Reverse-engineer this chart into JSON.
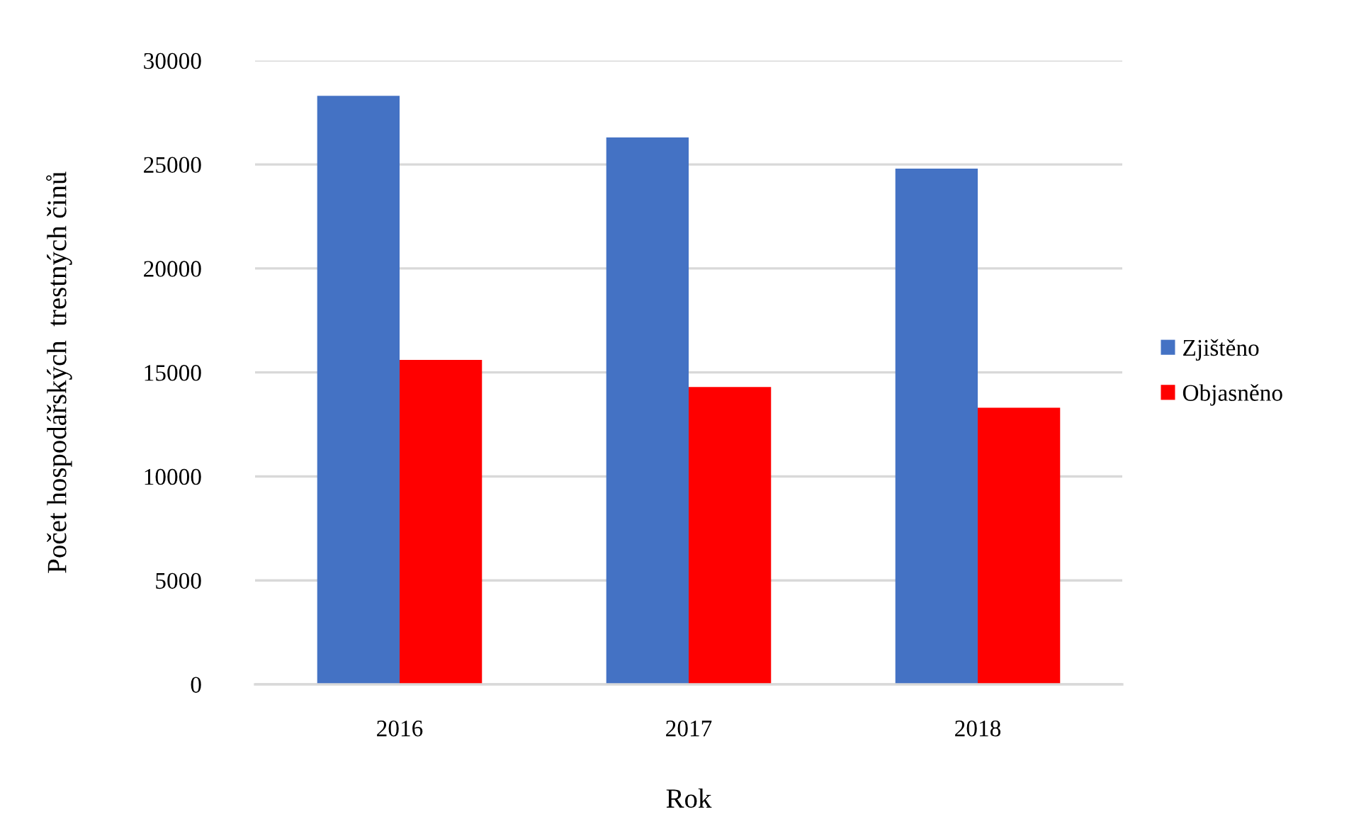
{
  "chart_data": {
    "type": "bar",
    "xlabel": "Rok",
    "ylabel": "Počet hospodářských  trestných činů",
    "categories": [
      "2016",
      "2017",
      "2018"
    ],
    "series": [
      {
        "name": "Zjištěno",
        "color": "#4472c4",
        "values": [
          28300,
          26300,
          24800
        ]
      },
      {
        "name": "Objasněno",
        "color": "#ff0000",
        "values": [
          15600,
          14300,
          13300
        ]
      }
    ],
    "ylim": [
      0,
      30000
    ],
    "yticks": [
      0,
      5000,
      10000,
      15000,
      20000,
      25000,
      30000
    ],
    "grid": "y",
    "legend": "right"
  }
}
